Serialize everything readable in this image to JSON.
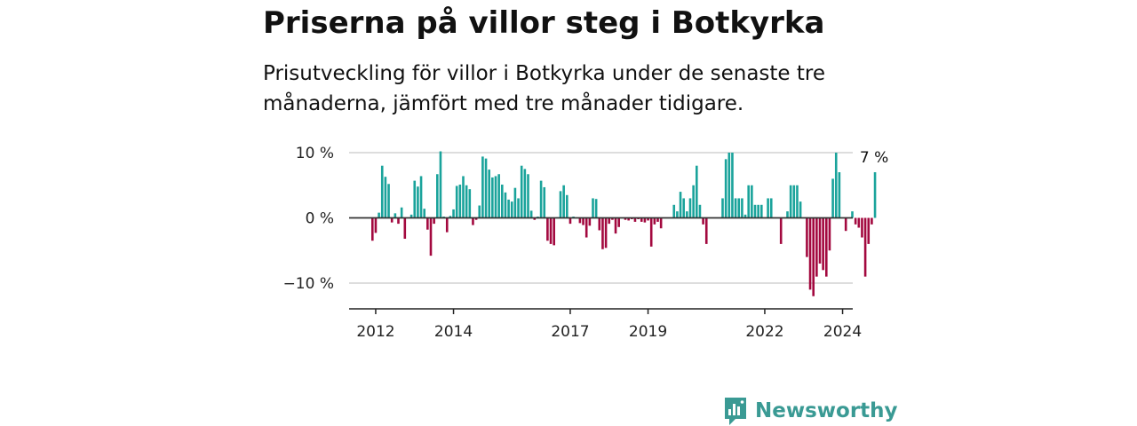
{
  "header": {
    "title": "Priserna på villor steg i Botkyrka",
    "subtitle": "Prisutveckling för villor i Botkyrka under de senaste tre månaderna, jämfört med tre månader tidigare."
  },
  "brand": {
    "name": "Newsworthy",
    "logo_icon": "newsworthy-logo-icon",
    "color": "#3a9a94"
  },
  "chart_data": {
    "type": "bar",
    "x_start": "2011-12",
    "y_ticks": [
      10,
      0,
      -10
    ],
    "y_tick_labels": [
      "10 %",
      "0 %",
      "−10 %"
    ],
    "x_ticks": [
      {
        "label": "2012",
        "month": "2012-01"
      },
      {
        "label": "2014",
        "month": "2014-01"
      },
      {
        "label": "2017",
        "month": "2017-01"
      },
      {
        "label": "2019",
        "month": "2019-01"
      },
      {
        "label": "2022",
        "month": "2022-01"
      },
      {
        "label": "2024",
        "month": "2024-01"
      }
    ],
    "ylim": [
      -14,
      10
    ],
    "grid": true,
    "positive_color": "#1aa39b",
    "negative_color": "#a3093f",
    "last_value_label": "7 %",
    "values": [
      -3.5,
      -2.3,
      0.8,
      8.0,
      6.3,
      5.2,
      -0.7,
      0.7,
      -0.9,
      1.6,
      -3.2,
      0.0,
      0.5,
      5.7,
      4.8,
      6.4,
      1.4,
      -1.8,
      -5.8,
      -0.9,
      6.7,
      10.2,
      0.2,
      -2.2,
      0.3,
      1.3,
      4.9,
      5.1,
      6.4,
      5.0,
      4.4,
      -1.1,
      -0.3,
      1.9,
      9.4,
      9.1,
      7.4,
      6.2,
      6.4,
      6.7,
      5.1,
      3.9,
      2.8,
      2.5,
      4.6,
      3.0,
      8.0,
      7.5,
      6.7,
      1.1,
      -0.3,
      0.2,
      5.7,
      4.7,
      -3.5,
      -4.0,
      -4.2,
      0.1,
      4.1,
      5.0,
      3.5,
      -0.9,
      0.2,
      0.0,
      -0.8,
      -1.1,
      -3.0,
      -1.2,
      3.0,
      2.9,
      -1.9,
      -4.8,
      -4.6,
      -0.9,
      -0.3,
      -2.4,
      -1.4,
      0.0,
      -0.3,
      -0.4,
      -0.2,
      -0.6,
      -0.2,
      -0.6,
      -0.7,
      -0.4,
      -4.4,
      -1.0,
      -0.6,
      -1.6,
      0.0,
      0.0,
      0.0,
      2.0,
      1.0,
      4.0,
      3.0,
      1.0,
      3.0,
      5.0,
      8.0,
      2.0,
      -1.0,
      -4.0,
      0.0,
      0.0,
      0.0,
      0.0,
      3.0,
      9.0,
      10.0,
      10.0,
      3.0,
      3.0,
      3.0,
      0.5,
      5.0,
      5.0,
      2.0,
      2.0,
      2.0,
      0.0,
      3.0,
      3.0,
      0.0,
      0.0,
      -4.0,
      0.0,
      1.0,
      5.0,
      5.0,
      5.0,
      2.5,
      0.0,
      -6.0,
      -11.0,
      -12.0,
      -9.0,
      -7.0,
      -8.0,
      -9.0,
      -5.0,
      6.0,
      10.0,
      7.0,
      0.0,
      -2.0,
      0.0,
      1.0,
      -1.0,
      -1.5,
      -3.0,
      -9.0,
      -4.0,
      -1.0,
      7.0
    ]
  }
}
